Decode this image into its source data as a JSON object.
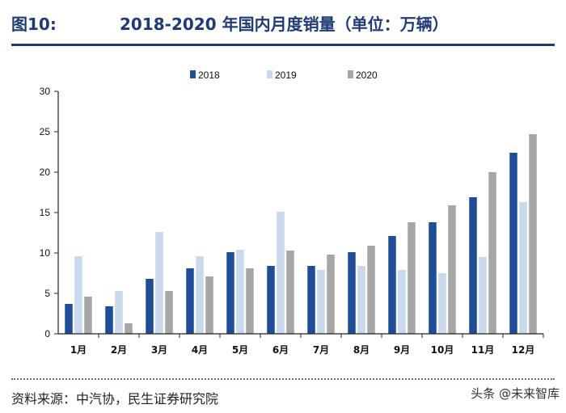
{
  "header": {
    "figure_label": "图10:",
    "figure_title": "2018-2020 年国内月度销量（单位：万辆）"
  },
  "footer": {
    "source": "资料来源：中汽协，民生证券研究院",
    "watermark": "头条 @未来智库"
  },
  "colors": {
    "s2018": "#1f4e96",
    "s2019": "#c9d8ec",
    "s2020": "#a6a6a6",
    "accent": "#1f3b73"
  },
  "chart_data": {
    "type": "bar",
    "title": "2018-2020 年国内月度销量（单位：万辆）",
    "xlabel": "",
    "ylabel": "",
    "ylim": [
      0,
      30
    ],
    "yticks": [
      0,
      5,
      10,
      15,
      20,
      25,
      30
    ],
    "grid": false,
    "legend_position": "top-center",
    "categories": [
      "1月",
      "2月",
      "3月",
      "4月",
      "5月",
      "6月",
      "7月",
      "8月",
      "9月",
      "10月",
      "11月",
      "12月"
    ],
    "series": [
      {
        "name": "2018",
        "color": "#1f4e96",
        "values": [
          3.7,
          3.4,
          6.8,
          8.1,
          10.1,
          8.4,
          8.4,
          10.1,
          12.1,
          13.8,
          16.9,
          22.4
        ]
      },
      {
        "name": "2019",
        "color": "#c9d8ec",
        "values": [
          9.6,
          5.3,
          12.6,
          9.6,
          10.4,
          15.1,
          7.9,
          8.4,
          7.9,
          7.5,
          9.5,
          16.3
        ]
      },
      {
        "name": "2020",
        "color": "#a6a6a6",
        "values": [
          4.6,
          1.3,
          5.3,
          7.1,
          8.1,
          10.3,
          9.8,
          10.9,
          13.8,
          15.9,
          20.0,
          24.7
        ]
      }
    ]
  }
}
